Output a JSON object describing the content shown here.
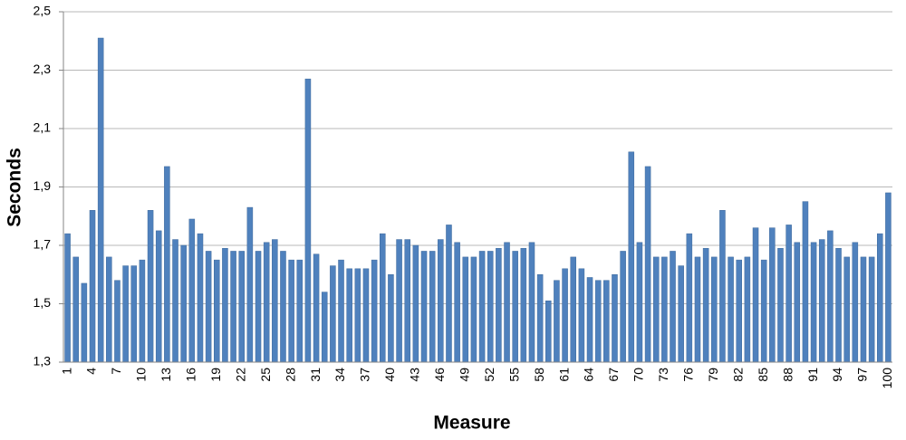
{
  "chart_data": {
    "type": "bar",
    "x_label": "Measure",
    "y_label": "Seconds",
    "categories": [
      "1",
      null,
      null,
      "4",
      null,
      null,
      "7",
      null,
      null,
      "10",
      null,
      null,
      "13",
      null,
      null,
      "16",
      null,
      null,
      "19",
      null,
      null,
      "22",
      null,
      null,
      "25",
      null,
      null,
      "28",
      null,
      null,
      "31",
      null,
      null,
      "34",
      null,
      null,
      "37",
      null,
      null,
      "40",
      null,
      null,
      "43",
      null,
      null,
      "46",
      null,
      null,
      "49",
      null,
      null,
      "52",
      null,
      null,
      "55",
      null,
      null,
      "58",
      null,
      null,
      "61",
      null,
      null,
      "64",
      null,
      null,
      "67",
      null,
      null,
      "70",
      null,
      null,
      "73",
      null,
      null,
      "76",
      null,
      null,
      "79",
      null,
      null,
      "82",
      null,
      null,
      "85",
      null,
      null,
      "88",
      null,
      null,
      "91",
      null,
      null,
      "94",
      null,
      null,
      "97",
      null,
      null,
      "100"
    ],
    "values": [
      1.74,
      1.66,
      1.57,
      1.82,
      2.41,
      1.66,
      1.58,
      1.63,
      1.63,
      1.65,
      1.82,
      1.75,
      1.97,
      1.72,
      1.7,
      1.79,
      1.74,
      1.68,
      1.65,
      1.69,
      1.68,
      1.68,
      1.83,
      1.68,
      1.71,
      1.72,
      1.68,
      1.65,
      1.65,
      2.27,
      1.67,
      1.54,
      1.63,
      1.65,
      1.62,
      1.62,
      1.62,
      1.65,
      1.74,
      1.6,
      1.72,
      1.72,
      1.7,
      1.68,
      1.68,
      1.72,
      1.77,
      1.71,
      1.66,
      1.66,
      1.68,
      1.68,
      1.69,
      1.71,
      1.68,
      1.69,
      1.71,
      1.6,
      1.51,
      1.58,
      1.62,
      1.66,
      1.62,
      1.59,
      1.58,
      1.58,
      1.6,
      1.68,
      2.02,
      1.71,
      1.97,
      1.66,
      1.66,
      1.68,
      1.63,
      1.74,
      1.66,
      1.69,
      1.66,
      1.82,
      1.66,
      1.65,
      1.66,
      1.76,
      1.65,
      1.76,
      1.69,
      1.77,
      1.71,
      1.85,
      1.71,
      1.72,
      1.75,
      1.69,
      1.66,
      1.71,
      1.66,
      1.66,
      1.74,
      1.88
    ],
    "color": "#4f81bd",
    "ylim": [
      1.3,
      2.5
    ],
    "yticks": [
      {
        "value": 1.3,
        "label": "1,3"
      },
      {
        "value": 1.5,
        "label": "1,5"
      },
      {
        "value": 1.7,
        "label": "1,7"
      },
      {
        "value": 1.9,
        "label": "1,9"
      },
      {
        "value": 2.1,
        "label": "2,1"
      },
      {
        "value": 2.3,
        "label": "2,3"
      },
      {
        "value": 2.5,
        "label": "2,5"
      }
    ],
    "grid": true
  }
}
